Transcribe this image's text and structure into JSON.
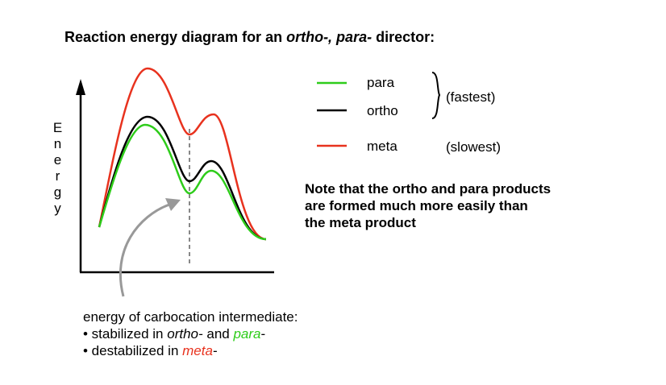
{
  "title": {
    "before": "Reaction energy diagram for an ",
    "italic": "ortho-, para-",
    "after": " director:"
  },
  "y_axis_label": "Energy",
  "legend": [
    {
      "label": "para",
      "color": "#2ecc1a"
    },
    {
      "label": "ortho",
      "color": "#000000"
    },
    {
      "label": "meta",
      "color": "#e8321e"
    }
  ],
  "brace_label": "(fastest)",
  "meta_note": "(slowest)",
  "note": [
    "Note that the ortho and para products",
    "are formed much more easily than",
    "the meta product"
  ],
  "caption": {
    "line1": "energy of carbocation intermediate:",
    "line2": [
      "• stabilized in ",
      "ortho-",
      " and ",
      "para",
      "-"
    ],
    "line3": [
      "• destabilized in ",
      "meta",
      "-"
    ]
  }
}
